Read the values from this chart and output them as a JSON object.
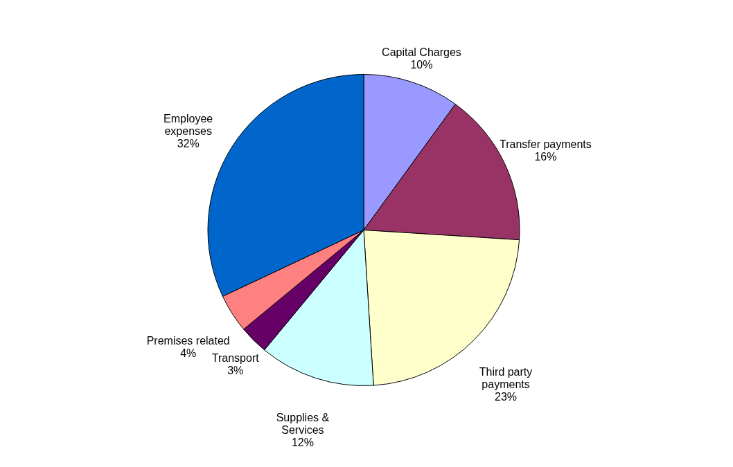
{
  "chart_data": {
    "type": "pie",
    "categories": [
      "Capital Charges",
      "Transfer payments",
      "Third party payments",
      "Supplies & Services",
      "Transport",
      "Premises related",
      "Employee expenses"
    ],
    "values": [
      10,
      16,
      23,
      12,
      3,
      4,
      32
    ],
    "value_labels": [
      "10%",
      "16%",
      "23%",
      "12%",
      "3%",
      "4%",
      "32%"
    ],
    "colors": [
      "#9999ff",
      "#993366",
      "#ffffcc",
      "#ccffff",
      "#660066",
      "#ff8080",
      "#0066cc"
    ],
    "legend": false
  }
}
